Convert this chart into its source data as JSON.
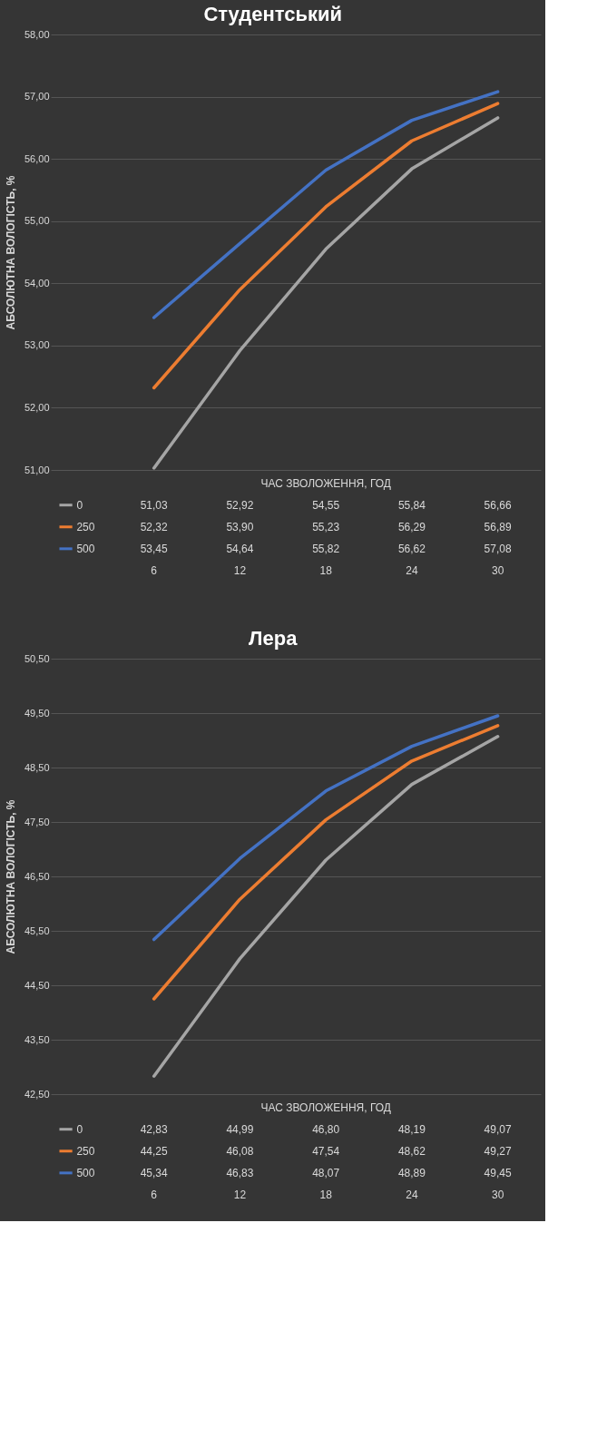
{
  "chart_data": [
    {
      "type": "line",
      "title": "Студентський",
      "xlabel": "ЧАС ЗВОЛОЖЕННЯ, ГОД",
      "ylabel": "АБСОЛЮТНА ВОЛОГІСТЬ, %",
      "categories": [
        "6",
        "12",
        "18",
        "24",
        "30"
      ],
      "series": [
        {
          "name": "500",
          "color": "#4472c4",
          "values": [
            53.45,
            54.64,
            55.82,
            56.62,
            57.08
          ],
          "value_labels": [
            "53,45",
            "54,64",
            "55,82",
            "56,62",
            "57,08"
          ]
        },
        {
          "name": "250",
          "color": "#ed7d31",
          "values": [
            52.32,
            53.9,
            55.23,
            56.29,
            56.89
          ],
          "value_labels": [
            "52,32",
            "53,90",
            "55,23",
            "56,29",
            "56,89"
          ]
        },
        {
          "name": "0",
          "color": "#a5a5a5",
          "values": [
            51.03,
            52.92,
            54.55,
            55.84,
            56.66
          ],
          "value_labels": [
            "51,03",
            "52,92",
            "54,55",
            "55,84",
            "56,66"
          ]
        }
      ],
      "ylim": [
        51,
        58
      ],
      "yticks": [
        {
          "value": 51,
          "label": "51,00"
        },
        {
          "value": 52,
          "label": "52,00"
        },
        {
          "value": 53,
          "label": "53,00"
        },
        {
          "value": 54,
          "label": "54,00"
        },
        {
          "value": 55,
          "label": "55,00"
        },
        {
          "value": 56,
          "label": "56,00"
        },
        {
          "value": 57,
          "label": "57,00"
        },
        {
          "value": 58,
          "label": "58,00"
        }
      ],
      "grid": "y",
      "legend": "left",
      "marker": "none",
      "line_style": "solid"
    },
    {
      "type": "line",
      "title": "Лера",
      "xlabel": "ЧАС ЗВОЛОЖЕННЯ, ГОД",
      "ylabel": "АБСОЛЮТНА ВОЛОГІСТЬ, %",
      "categories": [
        "6",
        "12",
        "18",
        "24",
        "30"
      ],
      "series": [
        {
          "name": "500",
          "color": "#4472c4",
          "values": [
            45.34,
            46.83,
            48.07,
            48.89,
            49.45
          ],
          "value_labels": [
            "45,34",
            "46,83",
            "48,07",
            "48,89",
            "49,45"
          ]
        },
        {
          "name": "250",
          "color": "#ed7d31",
          "values": [
            44.25,
            46.08,
            47.54,
            48.62,
            49.27
          ],
          "value_labels": [
            "44,25",
            "46,08",
            "47,54",
            "48,62",
            "49,27"
          ]
        },
        {
          "name": "0",
          "color": "#a5a5a5",
          "values": [
            42.83,
            44.99,
            46.8,
            48.19,
            49.07
          ],
          "value_labels": [
            "42,83",
            "44,99",
            "46,80",
            "48,19",
            "49,07"
          ]
        }
      ],
      "ylim": [
        42.5,
        50.5
      ],
      "yticks": [
        {
          "value": 42.5,
          "label": "42,50"
        },
        {
          "value": 43.5,
          "label": "43,50"
        },
        {
          "value": 44.5,
          "label": "44,50"
        },
        {
          "value": 45.5,
          "label": "45,50"
        },
        {
          "value": 46.5,
          "label": "46,50"
        },
        {
          "value": 47.5,
          "label": "47,50"
        },
        {
          "value": 48.5,
          "label": "48,50"
        },
        {
          "value": 49.5,
          "label": "49,50"
        },
        {
          "value": 50.5,
          "label": "50,50"
        }
      ],
      "grid": "y",
      "legend": "left",
      "marker": "none",
      "line_style": "solid"
    }
  ]
}
